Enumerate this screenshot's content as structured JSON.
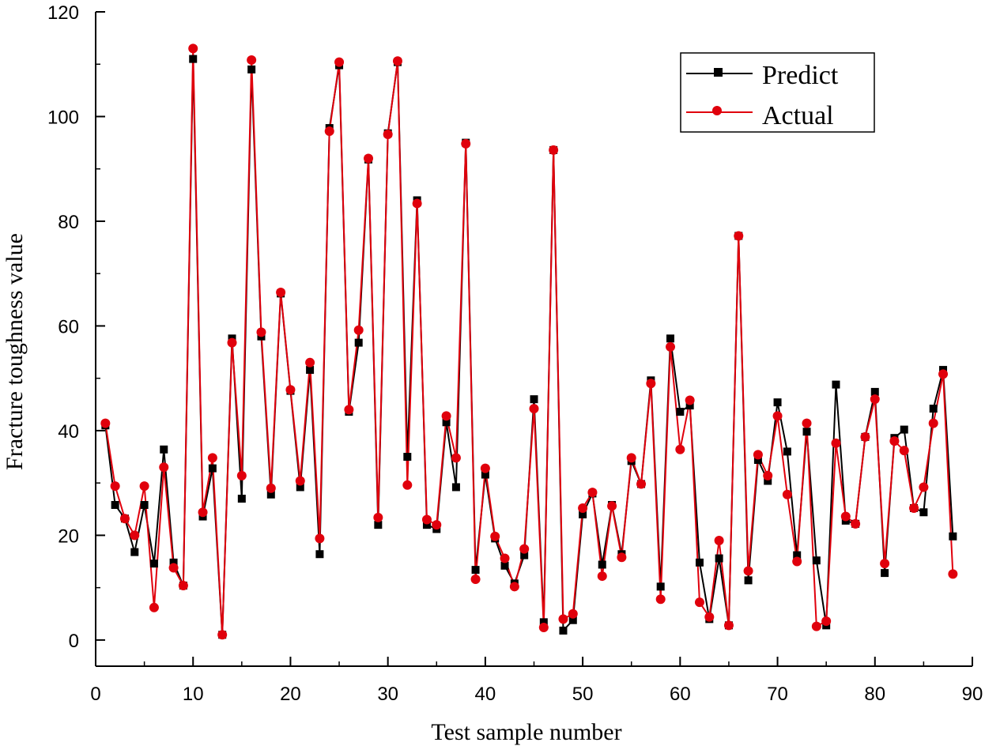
{
  "chart_data": {
    "type": "line",
    "title": "",
    "xlabel": "Test sample number",
    "ylabel": "Fracture toughness value",
    "xlim": [
      0,
      90
    ],
    "ylim": [
      -5,
      120
    ],
    "xticks": [
      0,
      10,
      20,
      30,
      40,
      50,
      60,
      70,
      80,
      90
    ],
    "yticks": [
      0,
      20,
      40,
      60,
      80,
      100,
      120
    ],
    "legend_position": "top-right",
    "x": [
      1,
      2,
      3,
      4,
      5,
      6,
      7,
      8,
      9,
      10,
      11,
      12,
      13,
      14,
      15,
      16,
      17,
      18,
      19,
      20,
      21,
      22,
      23,
      24,
      25,
      26,
      27,
      28,
      29,
      30,
      31,
      32,
      33,
      34,
      35,
      36,
      37,
      38,
      39,
      40,
      41,
      42,
      43,
      44,
      45,
      46,
      47,
      48,
      49,
      50,
      51,
      52,
      53,
      54,
      55,
      56,
      57,
      58,
      59,
      60,
      61,
      62,
      63,
      64,
      65,
      66,
      67,
      68,
      69,
      70,
      71,
      72,
      73,
      74,
      75,
      76,
      77,
      78,
      79,
      80,
      81,
      82,
      83,
      84,
      85,
      86,
      87,
      88
    ],
    "series": [
      {
        "name": "Predict",
        "color": "#000000",
        "marker": "square",
        "values": [
          41.0,
          25.8,
          23.2,
          16.8,
          25.8,
          14.6,
          36.4,
          14.8,
          10.4,
          111.0,
          23.6,
          32.8,
          1.0,
          57.6,
          27.0,
          109.0,
          58.0,
          27.8,
          66.2,
          47.6,
          29.2,
          51.6,
          16.4,
          97.8,
          109.8,
          43.6,
          56.8,
          91.8,
          22.0,
          96.8,
          110.4,
          35.0,
          84.0,
          22.0,
          21.2,
          41.6,
          29.2,
          95.0,
          13.4,
          31.6,
          19.4,
          14.2,
          10.8,
          16.2,
          46.0,
          3.4,
          93.6,
          1.8,
          3.8,
          24.0,
          28.0,
          14.4,
          25.8,
          16.4,
          34.2,
          29.8,
          49.6,
          10.2,
          57.6,
          43.6,
          44.8,
          14.8,
          4.0,
          15.6,
          2.8,
          77.2,
          11.4,
          34.4,
          30.4,
          45.4,
          36.0,
          16.2,
          39.8,
          15.2,
          2.8,
          48.8,
          22.8,
          22.2,
          38.8,
          47.4,
          12.8,
          38.6,
          40.2,
          25.2,
          24.4,
          44.2,
          51.6,
          19.8
        ]
      },
      {
        "name": "Actual",
        "color": "#e0000c",
        "marker": "circle",
        "values": [
          41.4,
          29.4,
          23.2,
          20.0,
          29.4,
          6.2,
          33.0,
          13.8,
          10.4,
          113.0,
          24.4,
          34.8,
          1.0,
          56.8,
          31.4,
          110.8,
          58.8,
          29.0,
          66.4,
          47.8,
          30.4,
          53.0,
          19.4,
          97.2,
          110.4,
          44.0,
          59.2,
          92.0,
          23.4,
          96.6,
          110.6,
          29.6,
          83.4,
          23.0,
          22.0,
          42.8,
          34.8,
          94.8,
          11.6,
          32.8,
          19.8,
          15.6,
          10.2,
          17.4,
          44.2,
          2.4,
          93.6,
          4.0,
          5.0,
          25.2,
          28.2,
          12.2,
          25.6,
          15.8,
          34.8,
          29.8,
          49.0,
          7.8,
          56.0,
          36.4,
          45.8,
          7.2,
          4.4,
          19.0,
          2.8,
          77.2,
          13.2,
          35.4,
          31.4,
          42.8,
          27.8,
          15.0,
          41.4,
          2.6,
          3.6,
          37.6,
          23.6,
          22.2,
          38.8,
          46.0,
          14.6,
          38.0,
          36.2,
          25.2,
          29.2,
          41.4,
          50.8,
          12.6
        ]
      }
    ]
  }
}
